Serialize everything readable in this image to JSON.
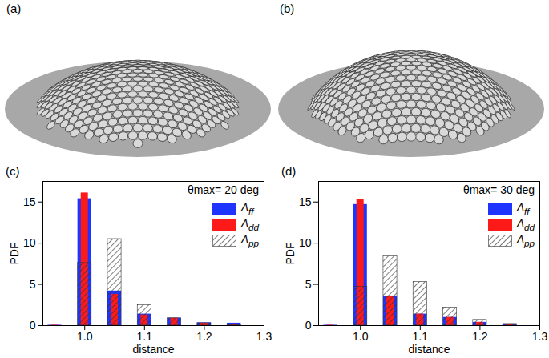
{
  "figures": [
    {
      "panel": "(a)"
    },
    {
      "panel": "(b)"
    }
  ],
  "chart_data": [
    {
      "type": "bar",
      "panel": "(c)",
      "annotations": [
        "θmax= 20 deg"
      ],
      "x_label": "distance",
      "y_label": "PDF",
      "x": [
        0.95,
        1.0,
        1.05,
        1.1,
        1.15,
        1.2,
        1.25
      ],
      "series": [
        {
          "name": "Δff",
          "color": "#1f35ff",
          "values": [
            0.05,
            15.4,
            4.2,
            1.4,
            0.9,
            0.35,
            0.3
          ]
        },
        {
          "name": "Δdd",
          "color": "#ff1a1a",
          "values": [
            0.05,
            16.1,
            3.8,
            1.3,
            0.9,
            0.3,
            0.2
          ]
        },
        {
          "name": "Δpp",
          "color": "#333333",
          "line_style": "hatched",
          "values": [
            0,
            7.6,
            10.5,
            2.5,
            0.9,
            0.3,
            0.1
          ]
        }
      ],
      "xlim": [
        0.93,
        1.3
      ],
      "xticks": [
        {
          "value": 1,
          "label": "1.0"
        },
        1.1,
        1.2,
        1.3
      ],
      "ylim": [
        0,
        17.5
      ],
      "yticks": [
        0,
        5,
        10,
        15
      ],
      "legend": "top-right"
    },
    {
      "type": "bar",
      "panel": "(d)",
      "annotations": [
        "θmax= 30 deg"
      ],
      "x_label": "distance",
      "y_label": "PDF",
      "x": [
        0.95,
        1.0,
        1.05,
        1.1,
        1.15,
        1.2,
        1.25
      ],
      "series": [
        {
          "name": "Δff",
          "color": "#1f35ff",
          "values": [
            0.05,
            14.7,
            3.6,
            1.4,
            1.0,
            0.4,
            0.2
          ]
        },
        {
          "name": "Δdd",
          "color": "#ff1a1a",
          "values": [
            0.05,
            15.3,
            3.6,
            1.4,
            1.0,
            0.4,
            0.2
          ]
        },
        {
          "name": "Δpp",
          "color": "#333333",
          "line_style": "hatched",
          "values": [
            0,
            4.7,
            8.4,
            5.3,
            2.2,
            0.7,
            0.2
          ]
        }
      ],
      "xlim": [
        0.93,
        1.3
      ],
      "xticks": [
        {
          "value": 1,
          "label": "1.0"
        },
        1.1,
        1.2,
        1.3
      ],
      "ylim": [
        0,
        17.5
      ],
      "yticks": [
        0,
        5,
        10,
        15
      ],
      "legend": "top-right"
    }
  ]
}
